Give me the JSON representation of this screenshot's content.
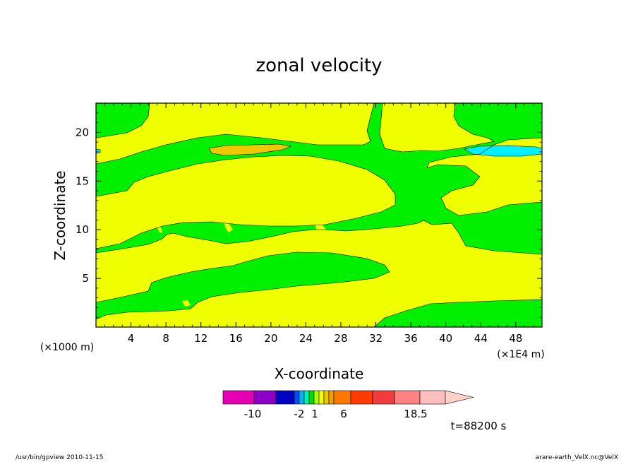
{
  "chart_data": {
    "type": "heatmap",
    "title": "zonal velocity",
    "xlabel": "X-coordinate",
    "ylabel": "Z-coordinate",
    "x_units_left": "(×1000 m)",
    "x_units_right": "(×1E4 m)",
    "xlim": [
      0,
      51
    ],
    "ylim": [
      0,
      23
    ],
    "x_ticks": [
      "4",
      "8",
      "12",
      "16",
      "20",
      "24",
      "28",
      "32",
      "36",
      "40",
      "44",
      "48"
    ],
    "x_tick_values": [
      4,
      8,
      12,
      16,
      20,
      24,
      28,
      32,
      36,
      40,
      44,
      48
    ],
    "y_ticks": [
      "5",
      "10",
      "15",
      "20"
    ],
    "y_tick_values": [
      5,
      10,
      15,
      20
    ],
    "grid": false,
    "fill_colors": {
      "green": "#00f000",
      "yellow": "#f0ff00",
      "orange": "#f0c800",
      "cyan": "#00f0ff"
    },
    "colorbar": {
      "colors": [
        "#e600b4",
        "#8c00c8",
        "#0000c0",
        "#0050f0",
        "#00b4f0",
        "#00f0b4",
        "#00dc00",
        "#aaff00",
        "#f0ff00",
        "#f0c800",
        "#f0a000",
        "#ff7800",
        "#ff3c00",
        "#f03c3c",
        "#ff8282",
        "#ffbebe",
        "#ffd2c8"
      ],
      "labels": [
        "-10",
        "-2",
        "1",
        "6",
        "18.5"
      ],
      "label_values": [
        -10,
        -2,
        1,
        6,
        18.5
      ]
    },
    "time_label": "t=88200 s"
  },
  "footer": {
    "left": "/usr/bin/gpview   2010-11-15",
    "right": "arare-earth_VelX.nc@VelX"
  }
}
